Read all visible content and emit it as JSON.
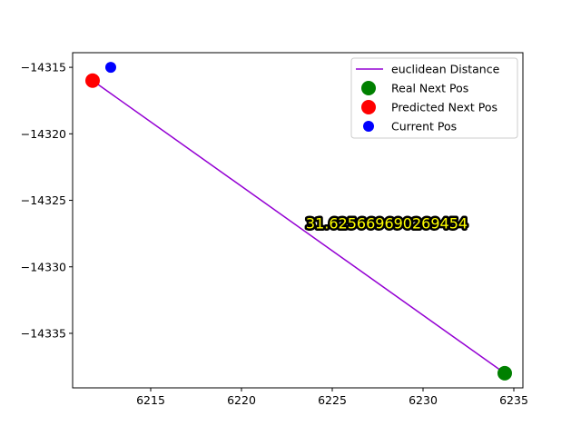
{
  "chart_data": {
    "type": "scatter",
    "title": "",
    "xlabel": "",
    "ylabel": "",
    "xlim": [
      6210.7,
      6235.5
    ],
    "ylim": [
      -14339.1,
      -14313.9
    ],
    "xticks": [
      6215,
      6220,
      6225,
      6230,
      6235
    ],
    "yticks": [
      -14315,
      -14320,
      -14325,
      -14330,
      -14335
    ],
    "grid": false,
    "legend_position": "top-right",
    "series": [
      {
        "name": "euclidean Distance",
        "kind": "line",
        "color": "#9400D3",
        "x": [
          6211.8,
          6234.5
        ],
        "y": [
          -14316.0,
          -14338.0
        ]
      },
      {
        "name": "Real Next Pos",
        "kind": "scatter",
        "color": "#008000",
        "x": [
          6234.5
        ],
        "y": [
          -14338.0
        ],
        "marker_size": "large"
      },
      {
        "name": "Predicted Next Pos",
        "kind": "scatter",
        "color": "#FF0000",
        "x": [
          6211.8
        ],
        "y": [
          -14316.0
        ],
        "marker_size": "large"
      },
      {
        "name": "Current Pos",
        "kind": "scatter",
        "color": "#0000FF",
        "x": [
          6212.8
        ],
        "y": [
          -14315.0
        ],
        "marker_size": "small"
      }
    ],
    "annotation": {
      "text": "31.625669690269454",
      "x": 6228.0,
      "y": -14326.7,
      "text_color": "#FFFF00",
      "outline_color": "#000000"
    }
  }
}
